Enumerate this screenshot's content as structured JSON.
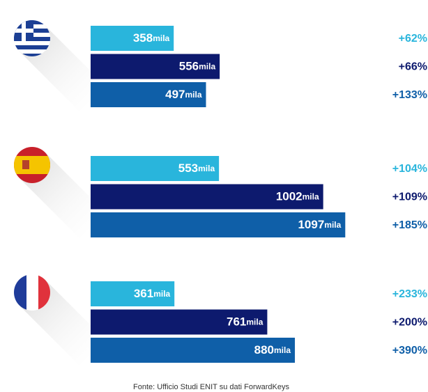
{
  "chart_data": {
    "type": "bar",
    "orientation": "horizontal",
    "categories": [
      null,
      null,
      null
    ],
    "unit": "mila",
    "series": [
      {
        "color": "#29b5dc",
        "values": [
          358,
          553,
          361
        ],
        "growth": [
          62,
          104,
          233
        ],
        "growth_labels": [
          "+62%",
          "+104%",
          "+233%"
        ]
      },
      {
        "color": "#0d1a6e",
        "values": [
          556,
          1002,
          761
        ],
        "growth": [
          66,
          109,
          200
        ],
        "growth_labels": [
          "+66%",
          "+109%",
          "+200%"
        ]
      },
      {
        "color": "#0f5fa8",
        "values": [
          497,
          1097,
          880
        ],
        "growth": [
          133,
          185,
          390
        ],
        "growth_labels": [
          "+133%",
          "+185%",
          "+390%"
        ]
      }
    ],
    "source": "Fonte: Ufficio Studi ENIT su dati ForwardKeys"
  }
}
